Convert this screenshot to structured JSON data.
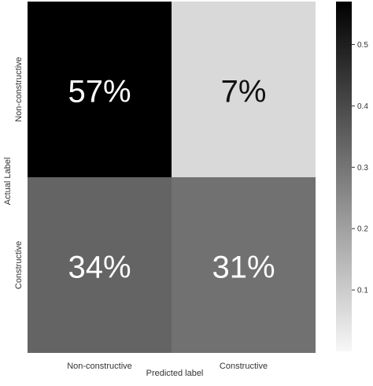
{
  "chart_data": {
    "type": "heatmap",
    "title": "",
    "xlabel": "Predicted label",
    "ylabel": "Actual Label",
    "x_categories": [
      "Non-constructive",
      "Constructive"
    ],
    "y_categories": [
      "Non-constructive",
      "Constructive"
    ],
    "values": [
      [
        0.57,
        0.07
      ],
      [
        0.34,
        0.31
      ]
    ],
    "cell_labels": [
      [
        "57%",
        "7%"
      ],
      [
        "34%",
        "31%"
      ]
    ],
    "colormap": "greys",
    "colorbar": {
      "range": [
        0.0,
        0.57
      ],
      "ticks": [
        0.1,
        0.2,
        0.3,
        0.4,
        0.5
      ],
      "tick_labels": [
        "0.1",
        "0.2",
        "0.3",
        "0.4",
        "0.5"
      ]
    },
    "grid": false
  }
}
